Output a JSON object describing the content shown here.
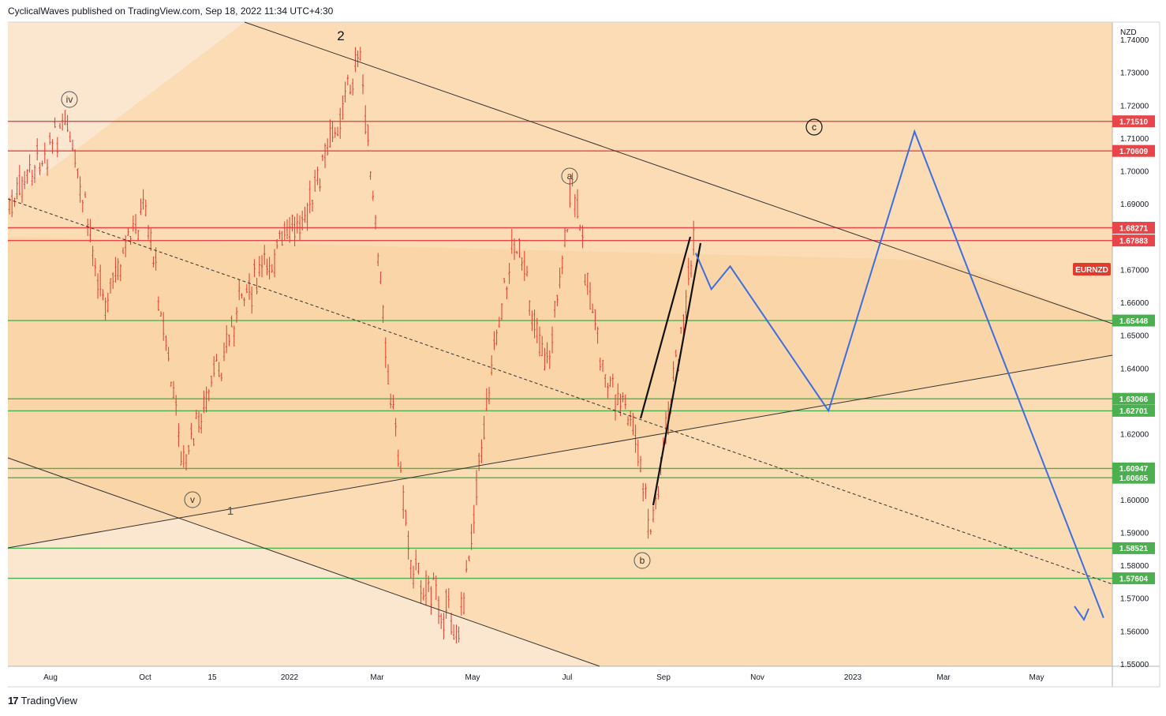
{
  "header": {
    "published_text": "CyclicalWaves published on TradingView.com, Sep 18, 2022 11:34 UTC+4:30"
  },
  "footer": {
    "brand": "TradingView"
  },
  "colors": {
    "background_upper": "#fbdcb4",
    "channel_fill": "#f9d0a0",
    "background_lower": "#fbe4cc",
    "candle": "#e23b2c",
    "red_level": "#e8454a",
    "green_level": "#4caf50",
    "projection": "#3c6ee0",
    "trendline": "#333333"
  },
  "chart_data": {
    "type": "candlestick",
    "symbol": "EURNZD",
    "currency": "NZD",
    "x_tick_labels": [
      "Aug",
      "Oct",
      "15",
      "2022",
      "Mar",
      "May",
      "Jul",
      "Sep",
      "Nov",
      "2023",
      "Mar",
      "May"
    ],
    "y_tick_labels": [
      "1.74000",
      "1.73000",
      "1.72000",
      "1.71000",
      "1.70000",
      "1.69000",
      "1.67000",
      "1.66000",
      "1.65000",
      "1.64000",
      "1.62000",
      "1.60000",
      "1.59000",
      "1.58000",
      "1.57000",
      "1.56000",
      "1.55000"
    ],
    "ylim": [
      1.55,
      1.745
    ],
    "red_levels": [
      "1.71510",
      "1.70609",
      "1.68271",
      "1.67883"
    ],
    "green_levels": [
      "1.65448",
      "1.63066",
      "1.62701",
      "1.60947",
      "1.60665",
      "1.58521",
      "1.57604"
    ],
    "wave_labels": [
      "iv",
      "v",
      "1",
      "2",
      "a",
      "b",
      "c"
    ],
    "price_points": [
      {
        "date": "2021-07-01",
        "price": 1.685
      },
      {
        "date": "2021-08-10",
        "price": 1.715
      },
      {
        "date": "2021-09-05",
        "price": 1.66
      },
      {
        "date": "2021-10-01",
        "price": 1.69
      },
      {
        "date": "2021-10-25",
        "price": 1.61
      },
      {
        "date": "2021-12-01",
        "price": 1.66
      },
      {
        "date": "2022-01-15",
        "price": 1.69
      },
      {
        "date": "2022-02-15",
        "price": 1.736
      },
      {
        "date": "2022-03-05",
        "price": 1.64
      },
      {
        "date": "2022-03-20",
        "price": 1.58
      },
      {
        "date": "2022-04-20",
        "price": 1.56
      },
      {
        "date": "2022-05-10",
        "price": 1.64
      },
      {
        "date": "2022-05-25",
        "price": 1.68
      },
      {
        "date": "2022-06-15",
        "price": 1.64
      },
      {
        "date": "2022-07-01",
        "price": 1.695
      },
      {
        "date": "2022-07-20",
        "price": 1.64
      },
      {
        "date": "2022-08-10",
        "price": 1.62
      },
      {
        "date": "2022-08-20",
        "price": 1.589
      },
      {
        "date": "2022-09-18",
        "price": 1.68
      }
    ],
    "projection_path": [
      {
        "date": "2022-09-18",
        "price": 1.675
      },
      {
        "date": "2022-09-28",
        "price": 1.664
      },
      {
        "date": "2022-10-10",
        "price": 1.671
      },
      {
        "date": "2022-12-12",
        "price": 1.627
      },
      {
        "date": "2023-02-05",
        "price": 1.712
      },
      {
        "date": "2023-06-06",
        "price": 1.564
      }
    ]
  }
}
